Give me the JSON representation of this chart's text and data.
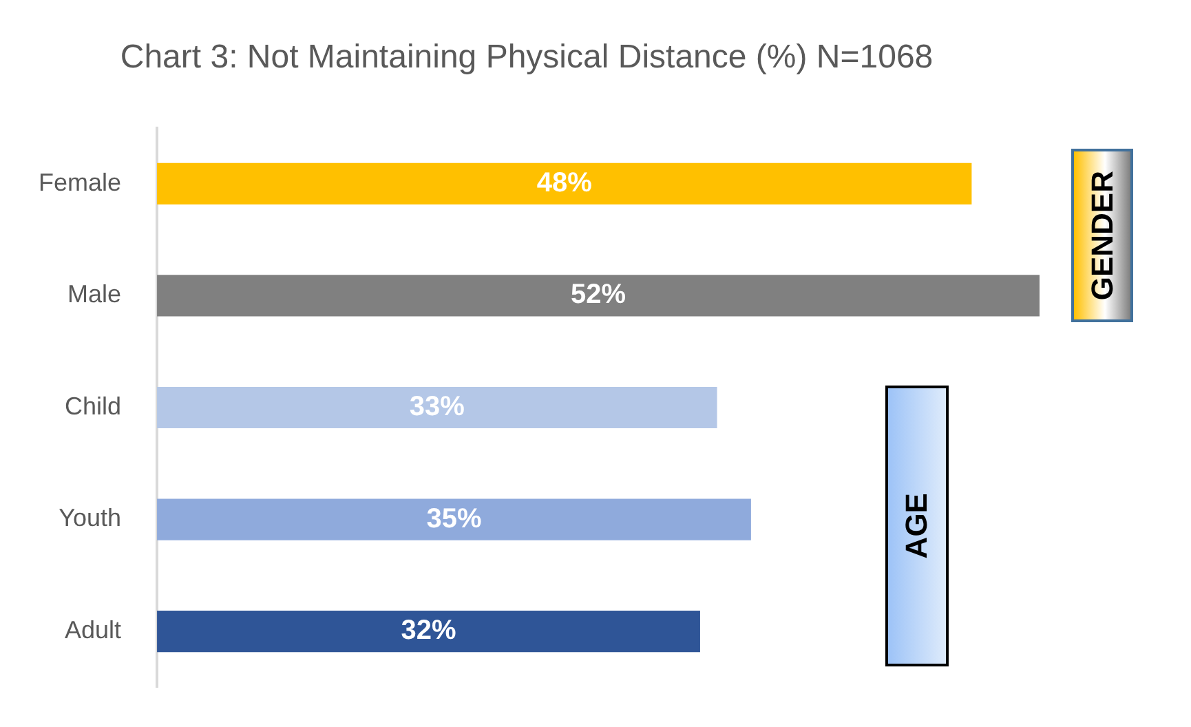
{
  "chart_data": {
    "type": "bar",
    "orientation": "horizontal",
    "title": "Chart 3: Not Maintaining Physical Distance (%) N=1068",
    "categories": [
      "Female",
      "Male",
      "Child",
      "Youth",
      "Adult"
    ],
    "values": [
      48,
      52,
      33,
      35,
      32
    ],
    "colors": [
      "#ffc000",
      "#808080",
      "#b4c7e7",
      "#8faadc",
      "#2f5597"
    ],
    "value_labels": [
      "48%",
      "52%",
      "33%",
      "35%",
      "32%"
    ],
    "tick_labels": "y",
    "annotations": [
      "GENDER",
      "AGE"
    ]
  }
}
